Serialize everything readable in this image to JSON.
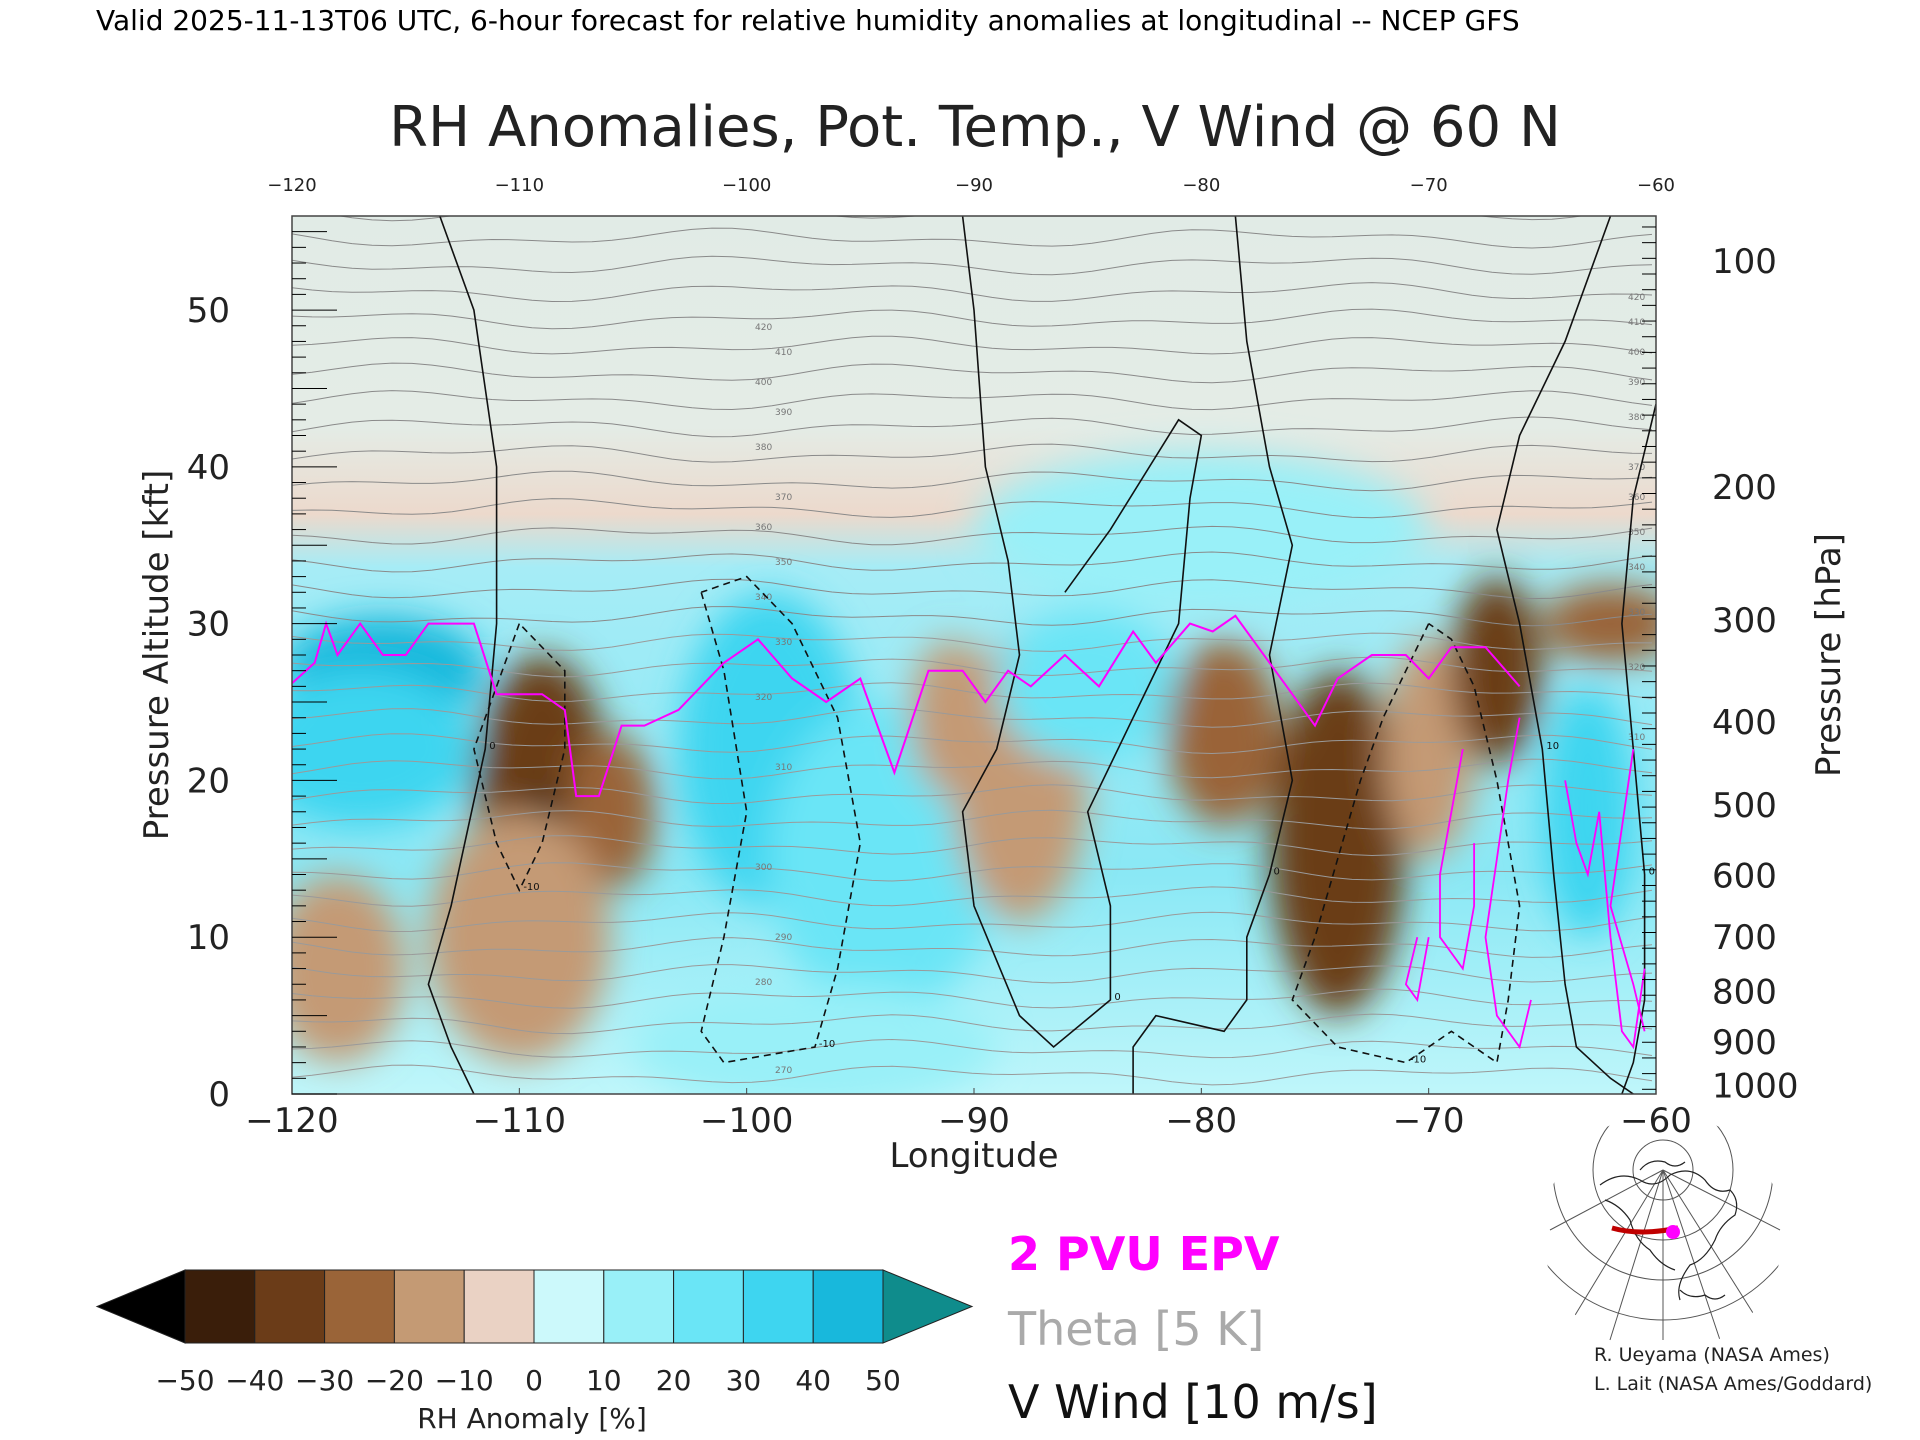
{
  "header": {
    "valid_line": "Valid 2025-11-13T06 UTC, 6-hour forecast for relative humidity anomalies at longitudinal -- NCEP GFS",
    "title": "RH Anomalies, Pot. Temp., V Wind @ 60 N"
  },
  "legend": {
    "epv": "2 PVU EPV",
    "theta": "Theta [5 K]",
    "vwind": "V Wind [10 m/s]",
    "epv_color": "#ff00ff",
    "theta_color": "#aaaaaa",
    "vwind_color": "#000000"
  },
  "credits": {
    "line1": "R. Ueyama (NASA Ames)",
    "line2": "L. Lait (NASA Ames/Goddard)"
  },
  "map_inset": {
    "icon": "globe-map-icon",
    "marker_color": "#ff00ff",
    "line_color": "#cc0000"
  },
  "colorbar": {
    "label": "RH Anomaly [%]",
    "ticks": [
      "-50",
      "-40",
      "-30",
      "-20",
      "-10",
      "0",
      "10",
      "20",
      "30",
      "40",
      "50"
    ],
    "colors": [
      "#000000",
      "#3a1e0a",
      "#6b3c18",
      "#9a6438",
      "#c49a74",
      "#ead2c4",
      "#ccf9fb",
      "#99f0f8",
      "#6ae5f6",
      "#3ed5f0",
      "#18b8dc",
      "#0e7e94",
      "#0f8c8c"
    ]
  },
  "chart_data": {
    "type": "heatmap",
    "title": "RH Anomalies, Pot. Temp., V Wind @ 60 N",
    "xlabel": "Longitude",
    "ylabel_left": "Pressure Altitude [kft]",
    "ylabel_right": "Pressure [hPa]",
    "xlim": [
      -120,
      -60
    ],
    "ylim": [
      0,
      56
    ],
    "x_ticks": [
      "-120",
      "-110",
      "-100",
      "-90",
      "-80",
      "-70",
      "-60"
    ],
    "x_ticks_top": [
      "-120",
      "-110",
      "-100",
      "-90",
      "-80",
      "-70",
      "-60"
    ],
    "y_ticks_left": [
      "0",
      "10",
      "20",
      "30",
      "40",
      "50"
    ],
    "y_ticks_right": [
      {
        "label": "100",
        "kft": 53.0
      },
      {
        "label": "200",
        "kft": 38.6
      },
      {
        "label": "300",
        "kft": 30.1
      },
      {
        "label": "400",
        "kft": 23.6
      },
      {
        "label": "500",
        "kft": 18.3
      },
      {
        "label": "600",
        "kft": 13.8
      },
      {
        "label": "700",
        "kft": 9.9
      },
      {
        "label": "800",
        "kft": 6.4
      },
      {
        "label": "900",
        "kft": 3.2
      },
      {
        "label": "1000",
        "kft": 0.4
      }
    ],
    "rh_anomaly_levels_pct": [
      -50,
      -40,
      -30,
      -20,
      -10,
      0,
      10,
      20,
      30,
      40,
      50
    ],
    "rh_anomaly_regions": [
      {
        "lon": -116,
        "kft": 27,
        "rw": 4.5,
        "rh": 3.5,
        "value": 40
      },
      {
        "lon": -117,
        "kft": 22,
        "rw": 5,
        "rh": 5,
        "value": 30
      },
      {
        "lon": -118,
        "kft": 8,
        "rw": 3,
        "rh": 6,
        "value": -20
      },
      {
        "lon": -109,
        "kft": 19,
        "rw": 3,
        "rh": 9,
        "value": -40
      },
      {
        "lon": -108.5,
        "kft": 17.5,
        "rw": 1.2,
        "rh": 2,
        "value": -50
      },
      {
        "lon": -106,
        "kft": 18,
        "rw": 2,
        "rh": 5,
        "value": -30
      },
      {
        "lon": -110,
        "kft": 10,
        "rw": 4,
        "rh": 8,
        "value": -15
      },
      {
        "lon": -99,
        "kft": 22,
        "rw": 4,
        "rh": 10,
        "value": 30
      },
      {
        "lon": -94,
        "kft": 15,
        "rw": 5,
        "rh": 10,
        "value": 20
      },
      {
        "lon": -91,
        "kft": 24,
        "rw": 1.8,
        "rh": 5,
        "value": -20
      },
      {
        "lon": -88,
        "kft": 20,
        "rw": 3,
        "rh": 9,
        "value": -15
      },
      {
        "lon": -85,
        "kft": 26,
        "rw": 4,
        "rh": 5,
        "value": 20
      },
      {
        "lon": -79,
        "kft": 23,
        "rw": 2.5,
        "rh": 6,
        "value": -25
      },
      {
        "lon": -74,
        "kft": 16,
        "rw": 3,
        "rh": 11,
        "value": -40
      },
      {
        "lon": -70,
        "kft": 22,
        "rw": 2,
        "rh": 7,
        "value": -20
      },
      {
        "lon": -67,
        "kft": 27,
        "rw": 2,
        "rh": 6,
        "value": -35
      },
      {
        "lon": -62,
        "kft": 30,
        "rw": 3,
        "rh": 2.5,
        "value": -30
      },
      {
        "lon": -63,
        "kft": 18,
        "rw": 2,
        "rh": 8,
        "value": 30
      },
      {
        "lon": -97,
        "kft": 3,
        "rw": 8,
        "rh": 4,
        "value": 10
      },
      {
        "lon": -80,
        "kft": 36,
        "rw": 10,
        "rh": 5,
        "value": 10
      }
    ],
    "theta_labels_K": [
      "270",
      "280",
      "290",
      "300",
      "310",
      "320",
      "330",
      "340",
      "350",
      "360",
      "370",
      "380",
      "390",
      "400",
      "410",
      "420"
    ],
    "epv_2pvu_line": [
      [
        -120,
        26.2
      ],
      [
        -119,
        27.5
      ],
      [
        -118.5,
        30
      ],
      [
        -118,
        28
      ],
      [
        -117,
        30
      ],
      [
        -116,
        28
      ],
      [
        -115,
        28
      ],
      [
        -114,
        30
      ],
      [
        -112,
        30
      ],
      [
        -111,
        25.5
      ],
      [
        -109,
        25.5
      ],
      [
        -108,
        24.5
      ],
      [
        -107.5,
        19
      ],
      [
        -106.5,
        19
      ],
      [
        -105.5,
        23.5
      ],
      [
        -104.5,
        23.5
      ],
      [
        -103,
        24.5
      ],
      [
        -101,
        27.5
      ],
      [
        -99.5,
        29
      ],
      [
        -98,
        26.5
      ],
      [
        -96.5,
        25
      ],
      [
        -95,
        26.5
      ],
      [
        -93.5,
        20.5
      ],
      [
        -92,
        27
      ],
      [
        -90.5,
        27
      ],
      [
        -89.5,
        25
      ],
      [
        -88.5,
        27
      ],
      [
        -87.5,
        26
      ],
      [
        -86,
        28
      ],
      [
        -84.5,
        26
      ],
      [
        -83,
        29.5
      ],
      [
        -82,
        27.5
      ],
      [
        -80.5,
        30
      ],
      [
        -79.5,
        29.5
      ],
      [
        -78.5,
        30.5
      ],
      [
        -77.5,
        28.5
      ],
      [
        -76,
        25.5
      ],
      [
        -75,
        23.5
      ],
      [
        -74,
        26.5
      ],
      [
        -72.5,
        28
      ],
      [
        -71,
        28
      ],
      [
        -70,
        26.5
      ],
      [
        -69,
        28.5
      ],
      [
        -67.5,
        28.5
      ],
      [
        -66,
        26
      ]
    ],
    "vwind_contours_10ms": [
      {
        "value": "0",
        "points": [
          [
            -113.5,
            56
          ],
          [
            -112,
            50
          ],
          [
            -111,
            40
          ],
          [
            -111,
            30
          ],
          [
            -111.5,
            22
          ],
          [
            -113,
            12
          ],
          [
            -114,
            7
          ],
          [
            -113,
            3
          ],
          [
            -112,
            0
          ]
        ]
      },
      {
        "value": "-10",
        "points": [
          [
            -110,
            30
          ],
          [
            -111,
            26
          ],
          [
            -112,
            22
          ],
          [
            -111,
            16
          ],
          [
            -110,
            13
          ],
          [
            -109,
            16
          ],
          [
            -108,
            22
          ],
          [
            -108,
            27
          ],
          [
            -110,
            30
          ]
        ]
      },
      {
        "value": "-10",
        "points": [
          [
            -102,
            32
          ],
          [
            -101,
            27
          ],
          [
            -100,
            18
          ],
          [
            -101,
            10
          ],
          [
            -102,
            4
          ],
          [
            -101,
            2
          ],
          [
            -97,
            3
          ],
          [
            -96,
            8
          ],
          [
            -95,
            16
          ],
          [
            -96,
            24
          ],
          [
            -98,
            30
          ],
          [
            -100,
            33
          ],
          [
            -102,
            32
          ]
        ]
      },
      {
        "value": "0",
        "points": [
          [
            -90.5,
            56
          ],
          [
            -90,
            50
          ],
          [
            -89.5,
            40
          ],
          [
            -88.5,
            34
          ],
          [
            -88,
            28
          ],
          [
            -89,
            22
          ],
          [
            -90.5,
            18
          ],
          [
            -90,
            12
          ],
          [
            -88,
            5
          ],
          [
            -86.5,
            3
          ],
          [
            -84,
            6
          ],
          [
            -84,
            12
          ],
          [
            -85,
            18
          ],
          [
            -83,
            24
          ],
          [
            -81,
            30
          ],
          [
            -80.5,
            38
          ],
          [
            -80,
            42
          ],
          [
            -81,
            43
          ],
          [
            -84,
            36
          ],
          [
            -86,
            32
          ]
        ]
      },
      {
        "value": "0",
        "points": [
          [
            -78.5,
            56
          ],
          [
            -78,
            48
          ],
          [
            -77,
            40
          ],
          [
            -76,
            35
          ],
          [
            -77,
            28
          ],
          [
            -76,
            20
          ],
          [
            -77,
            14
          ],
          [
            -78,
            10
          ],
          [
            -78,
            6
          ],
          [
            -79,
            4
          ],
          [
            -82,
            5
          ],
          [
            -83,
            3
          ],
          [
            -83,
            0
          ]
        ]
      },
      {
        "value": "-10",
        "points": [
          [
            -70,
            30
          ],
          [
            -71,
            27
          ],
          [
            -72,
            24
          ],
          [
            -73,
            20
          ],
          [
            -74,
            15
          ],
          [
            -75,
            10
          ],
          [
            -76,
            6
          ],
          [
            -74,
            3
          ],
          [
            -71,
            2
          ],
          [
            -69,
            4
          ],
          [
            -67,
            2
          ],
          [
            -66.5,
            6
          ],
          [
            -66,
            12
          ],
          [
            -67,
            20
          ],
          [
            -68,
            26
          ],
          [
            -69,
            29
          ],
          [
            -70,
            30
          ]
        ]
      },
      {
        "value": "10",
        "points": [
          [
            -62,
            56
          ],
          [
            -64,
            48
          ],
          [
            -66,
            42
          ],
          [
            -67,
            36
          ],
          [
            -66,
            30
          ],
          [
            -65,
            22
          ],
          [
            -64.5,
            14
          ],
          [
            -64,
            7
          ],
          [
            -63.5,
            3
          ],
          [
            -62,
            1
          ],
          [
            -61,
            0
          ]
        ]
      },
      {
        "value": "0",
        "points": [
          [
            -60,
            44
          ],
          [
            -61,
            38
          ],
          [
            -61.5,
            30
          ],
          [
            -61,
            22
          ],
          [
            -60.5,
            14
          ],
          [
            -60.5,
            6
          ],
          [
            -61,
            2
          ],
          [
            -61.5,
            0
          ]
        ]
      }
    ]
  }
}
